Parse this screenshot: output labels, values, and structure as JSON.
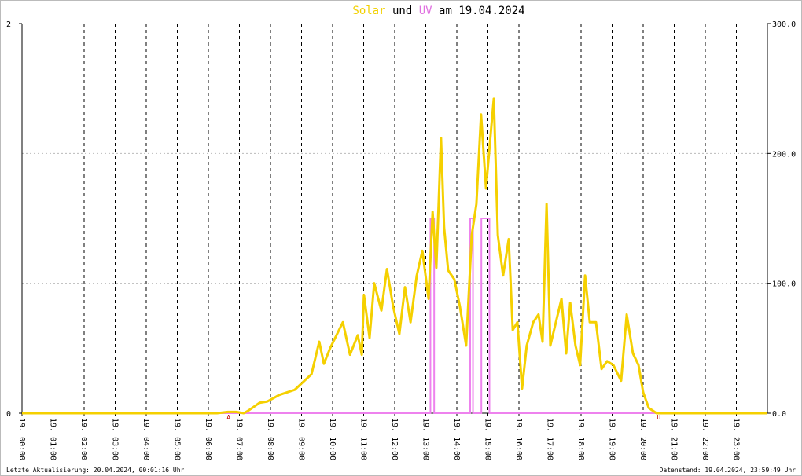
{
  "chart_data": {
    "type": "line",
    "title_parts": [
      {
        "text": "Solar",
        "color": "#f2d000"
      },
      {
        "text": "und",
        "color": "#000000"
      },
      {
        "text": "UV",
        "color": "#e070e0"
      },
      {
        "text": "am 19.04.2024",
        "color": "#000000"
      }
    ],
    "xlim": [
      0,
      24
    ],
    "xticks": [
      {
        "value": 0,
        "label": "19. 00:00"
      },
      {
        "value": 1,
        "label": "19. 01:00"
      },
      {
        "value": 2,
        "label": "19. 02:00"
      },
      {
        "value": 3,
        "label": "19. 03:00"
      },
      {
        "value": 4,
        "label": "19. 04:00"
      },
      {
        "value": 5,
        "label": "19. 05:00"
      },
      {
        "value": 6,
        "label": "19. 06:00"
      },
      {
        "value": 7,
        "label": "19. 07:00"
      },
      {
        "value": 8,
        "label": "19. 08:00"
      },
      {
        "value": 9,
        "label": "19. 09:00"
      },
      {
        "value": 10,
        "label": "19. 10:00"
      },
      {
        "value": 11,
        "label": "19. 11:00"
      },
      {
        "value": 12,
        "label": "19. 12:00"
      },
      {
        "value": 13,
        "label": "19. 13:00"
      },
      {
        "value": 14,
        "label": "19. 14:00"
      },
      {
        "value": 15,
        "label": "19. 15:00"
      },
      {
        "value": 16,
        "label": "19. 16:00"
      },
      {
        "value": 17,
        "label": "19. 17:00"
      },
      {
        "value": 18,
        "label": "19. 18:00"
      },
      {
        "value": 19,
        "label": "19. 19:00"
      },
      {
        "value": 20,
        "label": "19. 20:00"
      },
      {
        "value": 21,
        "label": "19. 21:00"
      },
      {
        "value": 22,
        "label": "19. 22:00"
      },
      {
        "value": 23,
        "label": "19. 23:00"
      }
    ],
    "ylim": [
      0,
      2
    ],
    "yticks": [
      0,
      2
    ],
    "y2lim": [
      0,
      300
    ],
    "y2ticks": [
      {
        "value": 0,
        "label": "0.0"
      },
      {
        "value": 100,
        "label": "100.0"
      },
      {
        "value": 200,
        "label": "200.0"
      },
      {
        "value": 300,
        "label": "300.0"
      }
    ],
    "grid": true,
    "series": [
      {
        "name": "UV",
        "color": "#ee82ee",
        "axis": "y",
        "x": [
          0,
          13.15,
          13.15,
          13.27,
          13.27,
          14.43,
          14.43,
          14.52,
          14.52,
          14.79,
          14.79,
          15.05,
          15.05,
          24
        ],
        "values": [
          0,
          0,
          1,
          1,
          0,
          0,
          1,
          1,
          0,
          0,
          1,
          1,
          0,
          0
        ]
      },
      {
        "name": "Solar",
        "color": "#f5d000",
        "axis": "y2",
        "x": [
          0,
          6.28,
          6.63,
          6.89,
          7.14,
          7.29,
          7.65,
          7.9,
          8.28,
          8.78,
          9.32,
          9.57,
          9.72,
          9.92,
          10.33,
          10.56,
          10.81,
          10.94,
          11.01,
          11.19,
          11.34,
          11.57,
          11.75,
          11.95,
          12.15,
          12.33,
          12.51,
          12.71,
          12.89,
          13.09,
          13.22,
          13.34,
          13.49,
          13.59,
          13.72,
          13.92,
          14.1,
          14.3,
          14.48,
          14.63,
          14.78,
          14.94,
          15.09,
          15.19,
          15.32,
          15.49,
          15.67,
          15.8,
          15.95,
          16.1,
          16.25,
          16.46,
          16.63,
          16.76,
          16.89,
          17.01,
          17.19,
          17.37,
          17.52,
          17.65,
          17.82,
          17.97,
          18.13,
          18.28,
          18.48,
          18.66,
          18.84,
          19.04,
          19.29,
          19.47,
          19.67,
          19.85,
          20.0,
          20.18,
          20.43,
          24
        ],
        "values": [
          0,
          0,
          1,
          1,
          0,
          2,
          8,
          9,
          14,
          18,
          30,
          55,
          38,
          50,
          70,
          45,
          60,
          45,
          91,
          58,
          100,
          79,
          111,
          82,
          61,
          97,
          70,
          106,
          125,
          88,
          155,
          112,
          212,
          143,
          110,
          103,
          82,
          52,
          137,
          161,
          230,
          173,
          215,
          242,
          137,
          106,
          134,
          64,
          70,
          19,
          52,
          70,
          76,
          55,
          161,
          52,
          70,
          88,
          46,
          85,
          52,
          37,
          106,
          70,
          70,
          34,
          40,
          37,
          25,
          76,
          46,
          37,
          16,
          4,
          0,
          0
        ]
      }
    ],
    "annotations": [
      {
        "text": "A",
        "x": 6.65,
        "color": "#c00000"
      },
      {
        "text": "U",
        "x": 20.5,
        "color": "#c00000"
      }
    ],
    "footer_left": "Letzte Aktualisierung: 20.04.2024, 00:01:16 Uhr",
    "footer_right": "Datenstand: 19.04.2024, 23:59:49 Uhr"
  }
}
